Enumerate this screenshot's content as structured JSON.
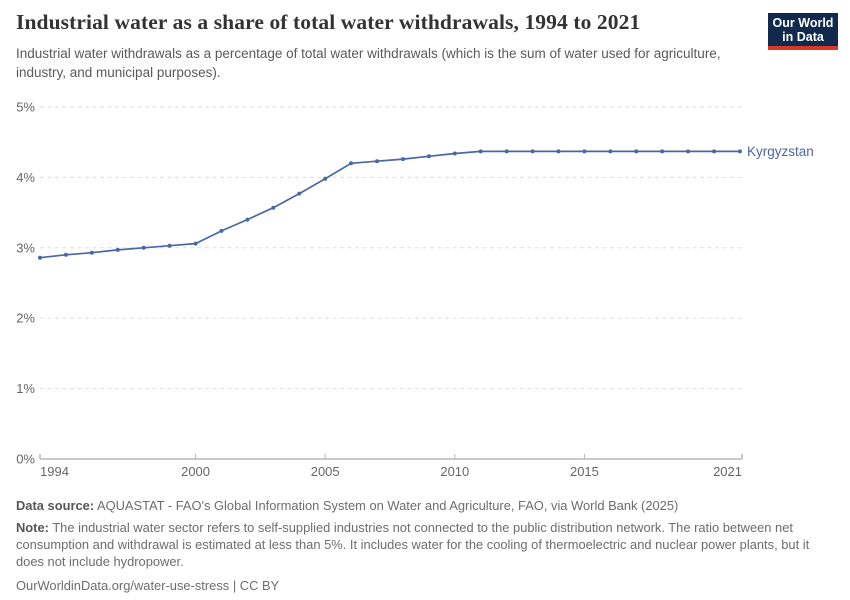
{
  "header": {
    "title": "Industrial water as a share of total water withdrawals, 1994 to 2021",
    "subtitle": "Industrial water withdrawals as a percentage of total water withdrawals (which is the sum of water used for agriculture, industry, and municipal purposes)."
  },
  "logo": {
    "line1": "Our World",
    "line2": "in Data",
    "bg_color": "#12294E",
    "accent_color": "#DC3627"
  },
  "chart_data": {
    "type": "line",
    "title": "Industrial water as a share of total water withdrawals, 1994 to 2021",
    "xlabel": "",
    "ylabel": "",
    "xlim": [
      1994,
      2021
    ],
    "ylim": [
      0,
      5
    ],
    "grid": "horizontal-dashed",
    "legend_position": "end-of-line-label",
    "xticks": [
      1994,
      2000,
      2005,
      2010,
      2015,
      2021
    ],
    "yticks": [
      {
        "value": 0,
        "label": "0%"
      },
      {
        "value": 1,
        "label": "1%"
      },
      {
        "value": 2,
        "label": "2%"
      },
      {
        "value": 3,
        "label": "3%"
      },
      {
        "value": 4,
        "label": "4%"
      },
      {
        "value": 5,
        "label": "5%"
      }
    ],
    "x": [
      1994,
      1995,
      1996,
      1997,
      1998,
      1999,
      2000,
      2001,
      2002,
      2003,
      2004,
      2005,
      2006,
      2007,
      2008,
      2009,
      2010,
      2011,
      2012,
      2013,
      2014,
      2015,
      2016,
      2017,
      2018,
      2019,
      2020,
      2021
    ],
    "series": [
      {
        "name": "Kyrgyzstan",
        "color": "#4A67A3",
        "values": [
          2.86,
          2.9,
          2.93,
          2.97,
          3.0,
          3.03,
          3.06,
          3.24,
          3.4,
          3.57,
          3.77,
          3.98,
          4.2,
          4.23,
          4.26,
          4.3,
          4.34,
          4.37,
          4.37,
          4.37,
          4.37,
          4.37,
          4.37,
          4.37,
          4.37,
          4.37,
          4.37,
          4.37
        ]
      }
    ],
    "colors": {
      "line": "#4A67A3",
      "grid": "#dddddd",
      "axis": "#b9b9b9",
      "tick_text": "#666666"
    }
  },
  "footer": {
    "data_source_label": "Data source:",
    "data_source": "AQUASTAT - FAO's Global Information System on Water and Agriculture, FAO, via World Bank (2025)",
    "note_label": "Note:",
    "note": "The industrial water sector refers to self-supplied industries not connected to the public distribution network. The ratio between net consumption and withdrawal is estimated at less than 5%. It includes water for the cooling of thermoelectric and nuclear power plants, but it does not include hydropower.",
    "citation": "OurWorldinData.org/water-use-stress | CC BY"
  }
}
